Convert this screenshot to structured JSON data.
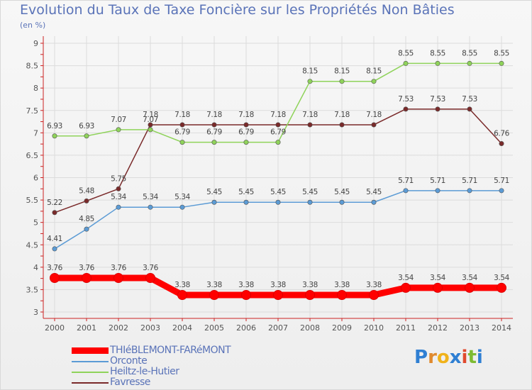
{
  "page": {
    "title": "Evolution du Taux de Taxe Foncière sur les Propriétés Non Bâties",
    "unit": "(en %)",
    "logo": "Proxiti"
  },
  "chart_data": {
    "type": "line",
    "title": "Evolution du Taux de Taxe Foncière sur les Propriétés Non Bâties",
    "ylabel": "(en %)",
    "xlabel": "",
    "ylim": [
      3,
      9
    ],
    "yticks": [
      "3",
      "3.5",
      "4",
      "4.5",
      "5",
      "5.5",
      "6",
      "6.5",
      "7",
      "7.5",
      "8",
      "8.5",
      "9"
    ],
    "grid": true,
    "categories": [
      "2000",
      "2001",
      "2002",
      "2003",
      "2004",
      "2005",
      "2006",
      "2007",
      "2008",
      "2009",
      "2010",
      "2011",
      "2012",
      "2013",
      "2014"
    ],
    "series": [
      {
        "name": "THIéBLEMONT-FARéMONT",
        "color": "#ff0000",
        "highlight": true,
        "values": [
          3.76,
          3.76,
          3.76,
          3.76,
          3.38,
          3.38,
          3.38,
          3.38,
          3.38,
          3.38,
          3.38,
          3.54,
          3.54,
          3.54,
          3.54
        ],
        "labels": [
          "3.76",
          "3.76",
          "3.76",
          "3.76",
          "3.38",
          "3.38",
          "3.38",
          "3.38",
          "3.38",
          "3.38",
          "3.38",
          "3.54",
          "3.54",
          "3.54",
          "3.54"
        ]
      },
      {
        "name": "Orconte",
        "color": "#5b9bd5",
        "values": [
          4.41,
          4.85,
          5.34,
          5.34,
          5.34,
          5.45,
          5.45,
          5.45,
          5.45,
          5.45,
          5.45,
          5.71,
          5.71,
          5.71,
          5.71
        ],
        "labels": [
          "4.41",
          "4.85",
          "5.34",
          "5.34",
          "5.34",
          "5.45",
          "5.45",
          "5.45",
          "5.45",
          "5.45",
          "5.45",
          "5.71",
          "5.71",
          "5.71",
          "5.71"
        ]
      },
      {
        "name": "Heiltz-le-Hutier",
        "color": "#8fd35a",
        "values": [
          6.93,
          6.93,
          7.07,
          7.07,
          6.79,
          6.79,
          6.79,
          6.79,
          8.15,
          8.15,
          8.15,
          8.55,
          8.55,
          8.55,
          8.55
        ],
        "labels": [
          "6.93",
          "6.93",
          "7.07",
          "7.07",
          "6.79",
          "6.79",
          "6.79",
          "6.79",
          "8.15",
          "8.15",
          "8.15",
          "8.55",
          "8.55",
          "8.55",
          "8.55"
        ]
      },
      {
        "name": "Favresse",
        "color": "#7a2a2a",
        "values": [
          5.22,
          5.48,
          5.75,
          7.18,
          7.18,
          7.18,
          7.18,
          7.18,
          7.18,
          7.18,
          7.18,
          7.53,
          7.53,
          7.53,
          6.76
        ],
        "labels": [
          "5.22",
          "5.48",
          "5.75",
          "7.18",
          "7.18",
          "7.18",
          "7.18",
          "7.18",
          "7.18",
          "7.18",
          "7.18",
          "7.53",
          "7.53",
          "7.53",
          "6.76"
        ]
      }
    ]
  }
}
